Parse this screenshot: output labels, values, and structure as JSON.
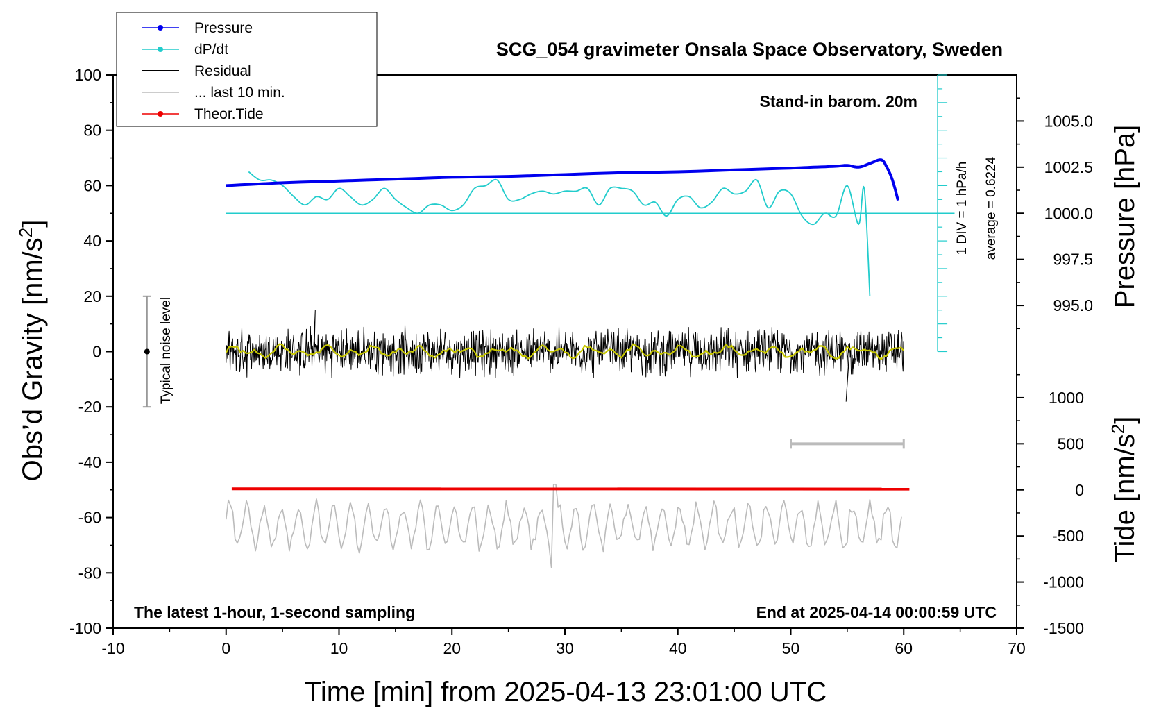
{
  "chart_data": {
    "type": "line",
    "title": "SCG_054 gravimeter Onsala Space Observatory, Sweden",
    "xlabel": "Time [min] from 2025-04-13 23:01:00 UTC",
    "ylabel_left": "Obs’d Gravity [nm/s²]",
    "ylabel_left_prefix": "Obs’d Gravity [nm/s",
    "ylabel_left_suffix": "]",
    "ylabel_right_pressure": "Pressure [hPa]",
    "ylabel_right_tide": "Tide [nm/s²]",
    "ylabel_right_tide_prefix": "Tide [nm/s",
    "ylabel_right_tide_suffix": "]",
    "superscript": "2",
    "xlim": [
      -10,
      70
    ],
    "ylim_left": [
      -100,
      100
    ],
    "x_ticks": [
      -10,
      0,
      10,
      20,
      30,
      40,
      50,
      60,
      70
    ],
    "y_ticks_left": [
      100,
      80,
      60,
      40,
      20,
      0,
      -20,
      -40,
      -60,
      -80,
      -100
    ],
    "pressure_axis": {
      "ticks": [
        "1005.0",
        "1002.5",
        "1000.0",
        "997.5",
        "995.0"
      ],
      "tick_values": [
        1005.0,
        1002.5,
        1000.0,
        997.5,
        995.0
      ]
    },
    "tide_axis": {
      "ticks": [
        "1000",
        "500",
        "0",
        "-500",
        "-1000",
        "-1500"
      ],
      "tick_values": [
        1000,
        500,
        0,
        -500,
        -1000,
        -1500
      ]
    },
    "legend": [
      {
        "label": "Pressure",
        "color": "#0000ee",
        "marker": true
      },
      {
        "label": "dP/dt",
        "color": "#22cccc",
        "marker": true
      },
      {
        "label": "Residual",
        "color": "#000000",
        "marker": false
      },
      {
        "label": "... last 10 min.",
        "color": "#bbbbbb",
        "marker": false
      },
      {
        "label": "Theor.Tide",
        "color": "#ee0000",
        "marker": true
      }
    ],
    "annotations": {
      "barometer": "Stand-in barom. 20m",
      "footer_left": "The latest 1-hour, 1-second sampling",
      "footer_right": "End at 2025-04-14 00:00:59 UTC",
      "noise_label": "Typical noise level",
      "div_label": "1 DIV = 1 hPa/h",
      "average_label": "average = 0.6224"
    },
    "noise_level": {
      "x": -7,
      "center": 0,
      "range": [
        -20,
        20
      ]
    },
    "last10_bar": {
      "x_range": [
        50,
        60
      ],
      "tide_value": 500
    },
    "series": [
      {
        "name": "Pressure",
        "axis": "pressure",
        "x": [
          0,
          5,
          10,
          15,
          20,
          25,
          30,
          35,
          40,
          45,
          50,
          52,
          54,
          55,
          56,
          57,
          58,
          58.5,
          59,
          59.5
        ],
        "values": [
          1001.5,
          1001.65,
          1001.75,
          1001.85,
          1001.95,
          1002.0,
          1002.1,
          1002.2,
          1002.25,
          1002.35,
          1002.45,
          1002.5,
          1002.55,
          1002.6,
          1002.5,
          1002.7,
          1002.9,
          1002.5,
          1001.8,
          1000.7
        ]
      },
      {
        "name": "dP/dt",
        "axis": "left",
        "x": [
          2,
          3,
          4,
          5,
          6,
          7,
          8,
          9,
          10,
          11,
          12,
          13,
          14,
          15,
          16,
          17,
          18,
          19,
          20,
          21,
          22,
          23,
          24,
          25,
          26,
          27,
          28,
          29,
          30,
          31,
          32,
          33,
          34,
          35,
          36,
          37,
          38,
          39,
          40,
          41,
          42,
          43,
          44,
          45,
          46,
          47,
          48,
          49,
          50,
          51,
          52,
          53,
          54,
          55,
          56,
          56.5,
          57
        ],
        "values": [
          65,
          62,
          62,
          60,
          56,
          53,
          56,
          55,
          59,
          56,
          53,
          55,
          59,
          55,
          52,
          50,
          53,
          53,
          51,
          53,
          59,
          60,
          62,
          55,
          55,
          57,
          58,
          57,
          58,
          58,
          59,
          53,
          59,
          59,
          58,
          53,
          54,
          49,
          55,
          56,
          52,
          54,
          59,
          57,
          58,
          62,
          52,
          58,
          57,
          49,
          46,
          50,
          49,
          60,
          46,
          59,
          20
        ]
      },
      {
        "name": "Theor.Tide",
        "axis": "left",
        "x": [
          0.5,
          60.5
        ],
        "values": [
          -49.6,
          -49.7
        ]
      }
    ],
    "residual_summary": {
      "x_range": [
        0,
        60
      ],
      "mean": 0,
      "typical_amplitude": 10,
      "extremes": [
        15,
        -18
      ]
    },
    "last10_summary": {
      "x_range": [
        0,
        60
      ],
      "mean": -63,
      "typical_amplitude": 10,
      "extremes": [
        -48,
        -78
      ]
    }
  },
  "colors": {
    "pressure": "#0000ee",
    "dpdt": "#22cccc",
    "residual": "#000000",
    "smooth": "#c8c800",
    "last10": "#bbbbbb",
    "tide": "#ee0000",
    "noise": "#999999"
  }
}
